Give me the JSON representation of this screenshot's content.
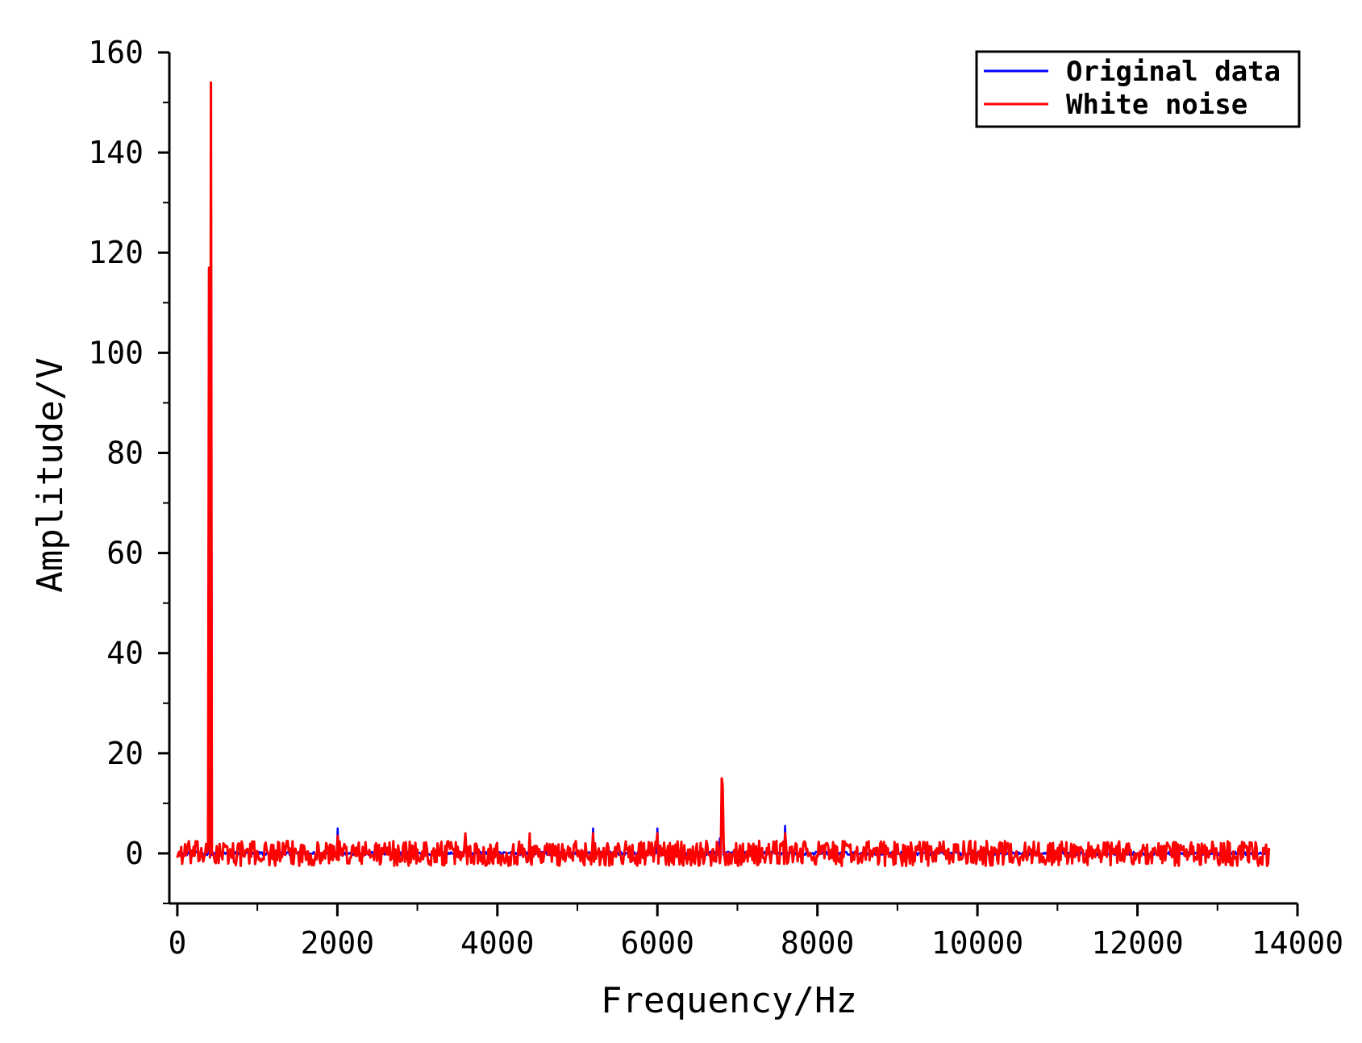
{
  "chart_data": {
    "type": "line",
    "title": "",
    "xlabel": "Frequency/Hz",
    "ylabel": "Amplitude/V",
    "xlim": [
      -100,
      14000
    ],
    "ylim": [
      -10,
      160
    ],
    "x_ticks": [
      0,
      2000,
      4000,
      6000,
      8000,
      10000,
      12000,
      14000
    ],
    "x_tick_labels": [
      "0",
      "2000",
      "4000",
      "6000",
      "8000",
      "10000",
      "12000",
      "14000"
    ],
    "y_ticks": [
      0,
      20,
      40,
      60,
      80,
      100,
      120,
      140,
      160
    ],
    "y_tick_labels": [
      "0",
      "20",
      "40",
      "60",
      "80",
      "100",
      "120",
      "140",
      "160"
    ],
    "legend_position": "top-right",
    "grid": false,
    "series": [
      {
        "name": "Original data",
        "color": "#0000ff",
        "x_range": [
          0,
          13650
        ],
        "baseline": 0,
        "peaks": [
          {
            "x": 400,
            "y": 117
          },
          {
            "x": 420,
            "y": 154
          },
          {
            "x": 1200,
            "y": 1.5
          },
          {
            "x": 2000,
            "y": 5
          },
          {
            "x": 3600,
            "y": 2.5
          },
          {
            "x": 4400,
            "y": 2.5
          },
          {
            "x": 5200,
            "y": 5
          },
          {
            "x": 6000,
            "y": 5
          },
          {
            "x": 6780,
            "y": 3
          },
          {
            "x": 6800,
            "y": 14
          },
          {
            "x": 6820,
            "y": 13
          },
          {
            "x": 7600,
            "y": 5.5
          }
        ]
      },
      {
        "name": "White noise",
        "color": "#ff0000",
        "x_range": [
          0,
          13650
        ],
        "baseline": 0,
        "noise_amplitude": 2.5,
        "peaks": [
          {
            "x": 400,
            "y": 117
          },
          {
            "x": 420,
            "y": 154
          },
          {
            "x": 2000,
            "y": 3.5
          },
          {
            "x": 3600,
            "y": 4
          },
          {
            "x": 4400,
            "y": 4
          },
          {
            "x": 5200,
            "y": 4
          },
          {
            "x": 6000,
            "y": 4
          },
          {
            "x": 6800,
            "y": 15
          },
          {
            "x": 6820,
            "y": 13.5
          },
          {
            "x": 7600,
            "y": 4
          }
        ]
      }
    ]
  }
}
